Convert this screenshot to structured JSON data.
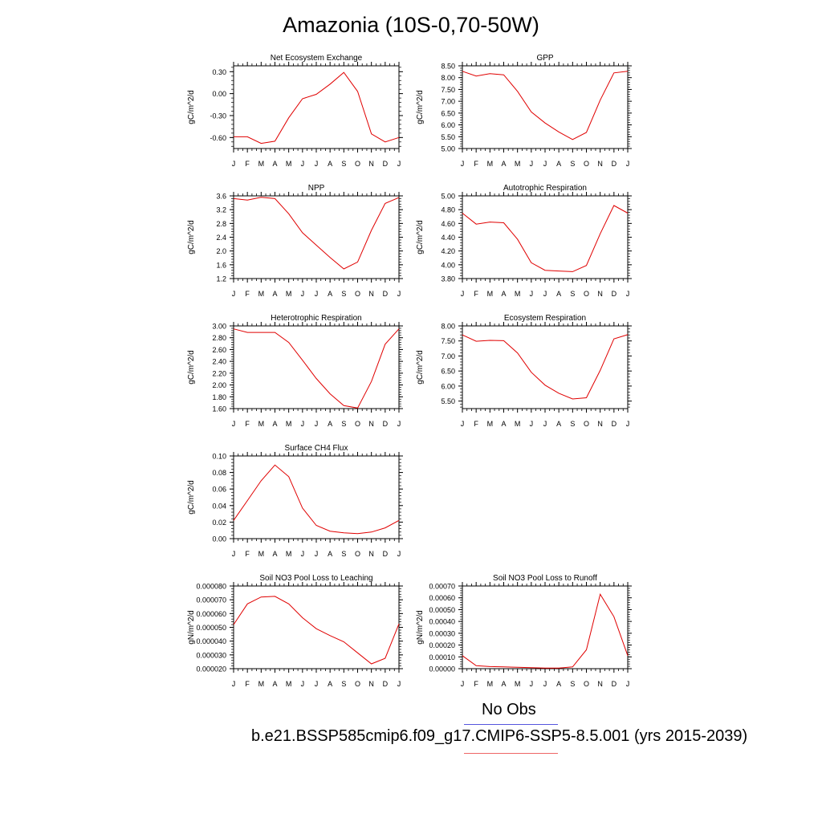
{
  "title": "Amazonia (10S-0,70-50W)",
  "legend": {
    "obs_label": "No Obs",
    "case_label": "b.e21.BSSP585cmip6.f09_g17.CMIP6-SSP5-8.5.001 (yrs 2015-2039)",
    "obs_color": "#5555dd",
    "case_color": "#ee6666"
  },
  "line_color": "#e00000",
  "chart_data": [
    {
      "type": "line",
      "title": "Net Ecosystem Exchange",
      "ylabel": "gC/m^2/d",
      "categories": [
        "J",
        "F",
        "M",
        "A",
        "M",
        "J",
        "J",
        "A",
        "S",
        "O",
        "N",
        "D",
        "J"
      ],
      "ylim": [
        -0.75,
        0.38
      ],
      "yticks": [
        "0.30",
        "0.00",
        "-0.30",
        "-0.60"
      ],
      "series": [
        {
          "values": [
            -0.59,
            -0.59,
            -0.68,
            -0.65,
            -0.33,
            -0.07,
            -0.01,
            0.13,
            0.29,
            0.03,
            -0.55,
            -0.66,
            -0.6
          ]
        }
      ]
    },
    {
      "type": "line",
      "title": "GPP",
      "ylabel": "gC/m^2/d",
      "categories": [
        "J",
        "F",
        "M",
        "A",
        "M",
        "J",
        "J",
        "A",
        "S",
        "O",
        "N",
        "D",
        "J"
      ],
      "ylim": [
        5.0,
        8.5
      ],
      "yticks": [
        "8.50",
        "8.00",
        "7.50",
        "7.00",
        "6.50",
        "6.00",
        "5.50",
        "5.00"
      ],
      "series": [
        {
          "values": [
            8.27,
            8.07,
            8.17,
            8.12,
            7.42,
            6.55,
            6.08,
            5.7,
            5.38,
            5.68,
            7.05,
            8.2,
            8.27
          ]
        }
      ]
    },
    {
      "type": "line",
      "title": "NPP",
      "ylabel": "gC/m^2/d",
      "categories": [
        "J",
        "F",
        "M",
        "A",
        "M",
        "J",
        "J",
        "A",
        "S",
        "O",
        "N",
        "D",
        "J"
      ],
      "ylim": [
        1.2,
        3.6
      ],
      "yticks": [
        "3.6",
        "3.2",
        "2.8",
        "2.4",
        "2.0",
        "1.6",
        "1.2"
      ],
      "series": [
        {
          "values": [
            3.52,
            3.48,
            3.56,
            3.52,
            3.08,
            2.53,
            2.17,
            1.81,
            1.48,
            1.68,
            2.6,
            3.38,
            3.55
          ]
        }
      ]
    },
    {
      "type": "line",
      "title": "Autotrophic Respiration",
      "ylabel": "gC/m^2/d",
      "categories": [
        "J",
        "F",
        "M",
        "A",
        "M",
        "J",
        "J",
        "A",
        "S",
        "O",
        "N",
        "D",
        "J"
      ],
      "ylim": [
        3.8,
        5.0
      ],
      "yticks": [
        "5.00",
        "4.80",
        "4.60",
        "4.40",
        "4.20",
        "4.00",
        "3.80"
      ],
      "series": [
        {
          "values": [
            4.75,
            4.59,
            4.62,
            4.61,
            4.37,
            4.03,
            3.92,
            3.91,
            3.9,
            3.99,
            4.45,
            4.86,
            4.75
          ]
        }
      ]
    },
    {
      "type": "line",
      "title": "Heterotrophic Respiration",
      "ylabel": "gC/m^2/d",
      "categories": [
        "J",
        "F",
        "M",
        "A",
        "M",
        "J",
        "J",
        "A",
        "S",
        "O",
        "N",
        "D",
        "J"
      ],
      "ylim": [
        1.6,
        3.0
      ],
      "yticks": [
        "3.00",
        "2.80",
        "2.60",
        "2.40",
        "2.20",
        "2.00",
        "1.80",
        "1.60"
      ],
      "series": [
        {
          "values": [
            2.95,
            2.89,
            2.89,
            2.89,
            2.72,
            2.42,
            2.11,
            1.85,
            1.65,
            1.61,
            2.06,
            2.69,
            2.95
          ]
        }
      ]
    },
    {
      "type": "line",
      "title": "Ecosystem Respiration",
      "ylabel": "gC/m^2/d",
      "categories": [
        "J",
        "F",
        "M",
        "A",
        "M",
        "J",
        "J",
        "A",
        "S",
        "O",
        "N",
        "D",
        "J"
      ],
      "ylim": [
        5.25,
        8.0
      ],
      "yticks": [
        "8.00",
        "7.50",
        "7.00",
        "6.50",
        "6.00",
        "5.50"
      ],
      "series": [
        {
          "values": [
            7.7,
            7.49,
            7.52,
            7.51,
            7.1,
            6.46,
            6.03,
            5.76,
            5.57,
            5.61,
            6.52,
            7.57,
            7.71
          ]
        }
      ]
    },
    {
      "type": "line",
      "title": "Surface CH4 Flux",
      "ylabel": "gC/m^2/d",
      "categories": [
        "J",
        "F",
        "M",
        "A",
        "M",
        "J",
        "J",
        "A",
        "S",
        "O",
        "N",
        "D",
        "J"
      ],
      "ylim": [
        0.0,
        0.1
      ],
      "yticks": [
        "0.10",
        "0.08",
        "0.06",
        "0.04",
        "0.02",
        "0.00"
      ],
      "series": [
        {
          "values": [
            0.022,
            0.046,
            0.07,
            0.089,
            0.075,
            0.037,
            0.016,
            0.009,
            0.007,
            0.006,
            0.008,
            0.013,
            0.022
          ]
        }
      ]
    },
    {
      "type": "line",
      "title": "Soil NO3 Pool Loss to Leaching",
      "ylabel": "gN/m^2/d",
      "categories": [
        "J",
        "F",
        "M",
        "A",
        "M",
        "J",
        "J",
        "A",
        "S",
        "O",
        "N",
        "D",
        "J"
      ],
      "ylim": [
        2e-05,
        8e-05
      ],
      "yticks": [
        "0.000080",
        "0.000070",
        "0.000060",
        "0.000050",
        "0.000040",
        "0.000030",
        "0.000020"
      ],
      "series": [
        {
          "values": [
            5.2e-05,
            6.7e-05,
            7.2e-05,
            7.25e-05,
            6.7e-05,
            5.7e-05,
            4.9e-05,
            4.4e-05,
            3.95e-05,
            3.15e-05,
            2.35e-05,
            2.75e-05,
            5.25e-05
          ]
        }
      ]
    },
    {
      "type": "line",
      "title": "Soil NO3 Pool Loss to Runoff",
      "ylabel": "gN/m^2/d",
      "categories": [
        "J",
        "F",
        "M",
        "A",
        "M",
        "J",
        "J",
        "A",
        "S",
        "O",
        "N",
        "D",
        "J"
      ],
      "ylim": [
        0.0,
        0.0007
      ],
      "yticks": [
        "0.00070",
        "0.00060",
        "0.00050",
        "0.00040",
        "0.00030",
        "0.00020",
        "0.00010",
        "0.00000"
      ],
      "series": [
        {
          "values": [
            0.00011,
            2.5e-05,
            1.8e-05,
            1.5e-05,
            1.2e-05,
            8e-06,
            5e-06,
            5e-06,
            1.5e-05,
            0.00016,
            0.00063,
            0.00044,
            0.00011
          ]
        }
      ]
    }
  ]
}
